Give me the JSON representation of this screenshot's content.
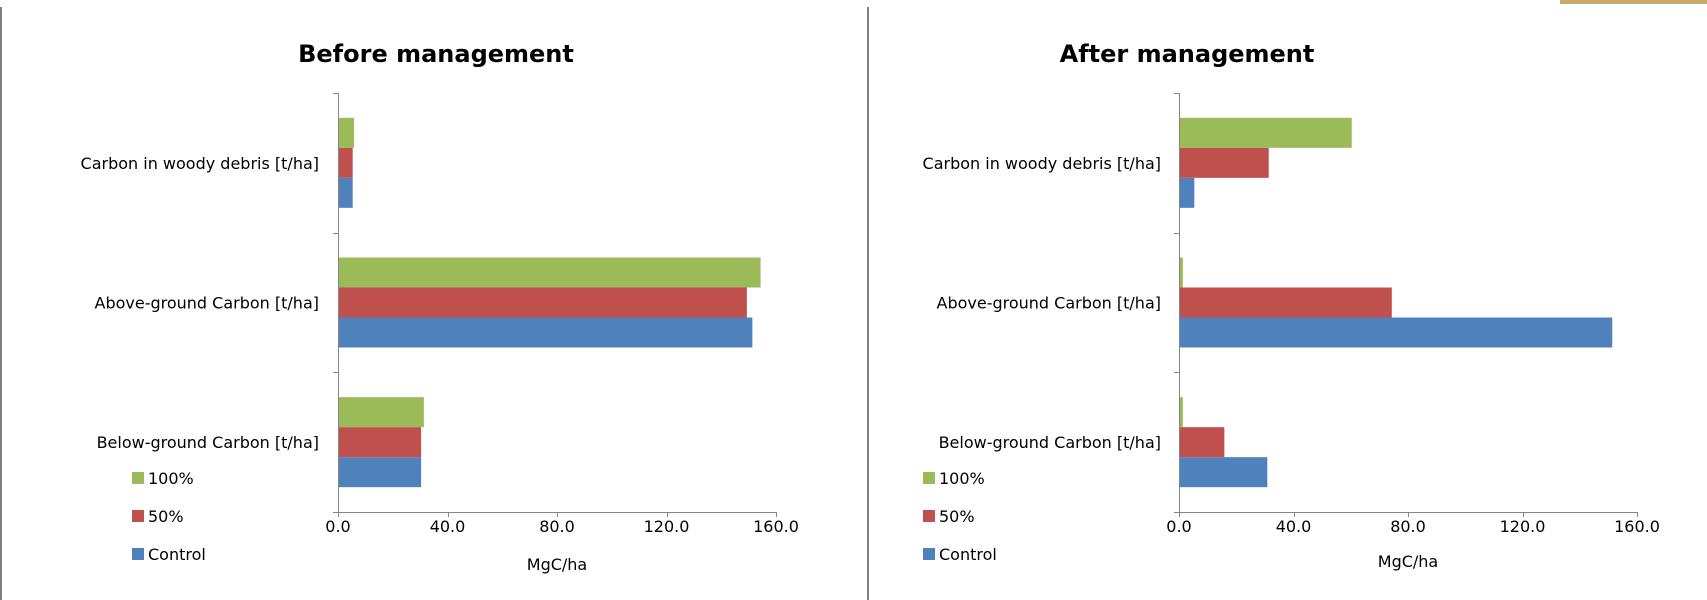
{
  "chart_data": [
    {
      "type": "bar",
      "orientation": "horizontal",
      "title": "Before management",
      "xlabel": "MgC/ha",
      "ylabel": "",
      "xlim": [
        0,
        160
      ],
      "xticks": [
        "0.0",
        "40.0",
        "80.0",
        "120.0",
        "160.0"
      ],
      "categories": [
        "Below-ground Carbon [t/ha]",
        "Above-ground Carbon [t/ha]",
        "Carbon in woody debris [t/ha]"
      ],
      "series": [
        {
          "name": "Control",
          "color": "#4f81bd",
          "values": [
            30,
            151,
            5
          ]
        },
        {
          "name": "50%",
          "color": "#c0504d",
          "values": [
            30,
            149,
            5
          ]
        },
        {
          "name": "100%",
          "color": "#9bbb59",
          "values": [
            31,
            154,
            5.5
          ]
        }
      ],
      "legend": "bottom-left",
      "grid": false
    },
    {
      "type": "bar",
      "orientation": "horizontal",
      "title": "After management",
      "xlabel": "MgC/ha",
      "ylabel": "",
      "xlim": [
        0,
        160
      ],
      "xticks": [
        "0.0",
        "40.0",
        "80.0",
        "120.0",
        "160.0"
      ],
      "categories": [
        "Below-ground Carbon [t/ha]",
        "Above-ground Carbon [t/ha]",
        "Carbon in woody debris [t/ha]"
      ],
      "series": [
        {
          "name": "Control",
          "color": "#4f81bd",
          "values": [
            30.5,
            151,
            5
          ]
        },
        {
          "name": "50%",
          "color": "#c0504d",
          "values": [
            15.5,
            74,
            31
          ]
        },
        {
          "name": "100%",
          "color": "#9bbb59",
          "values": [
            1,
            1,
            60
          ]
        }
      ],
      "legend": "bottom-left",
      "grid": false
    }
  ]
}
